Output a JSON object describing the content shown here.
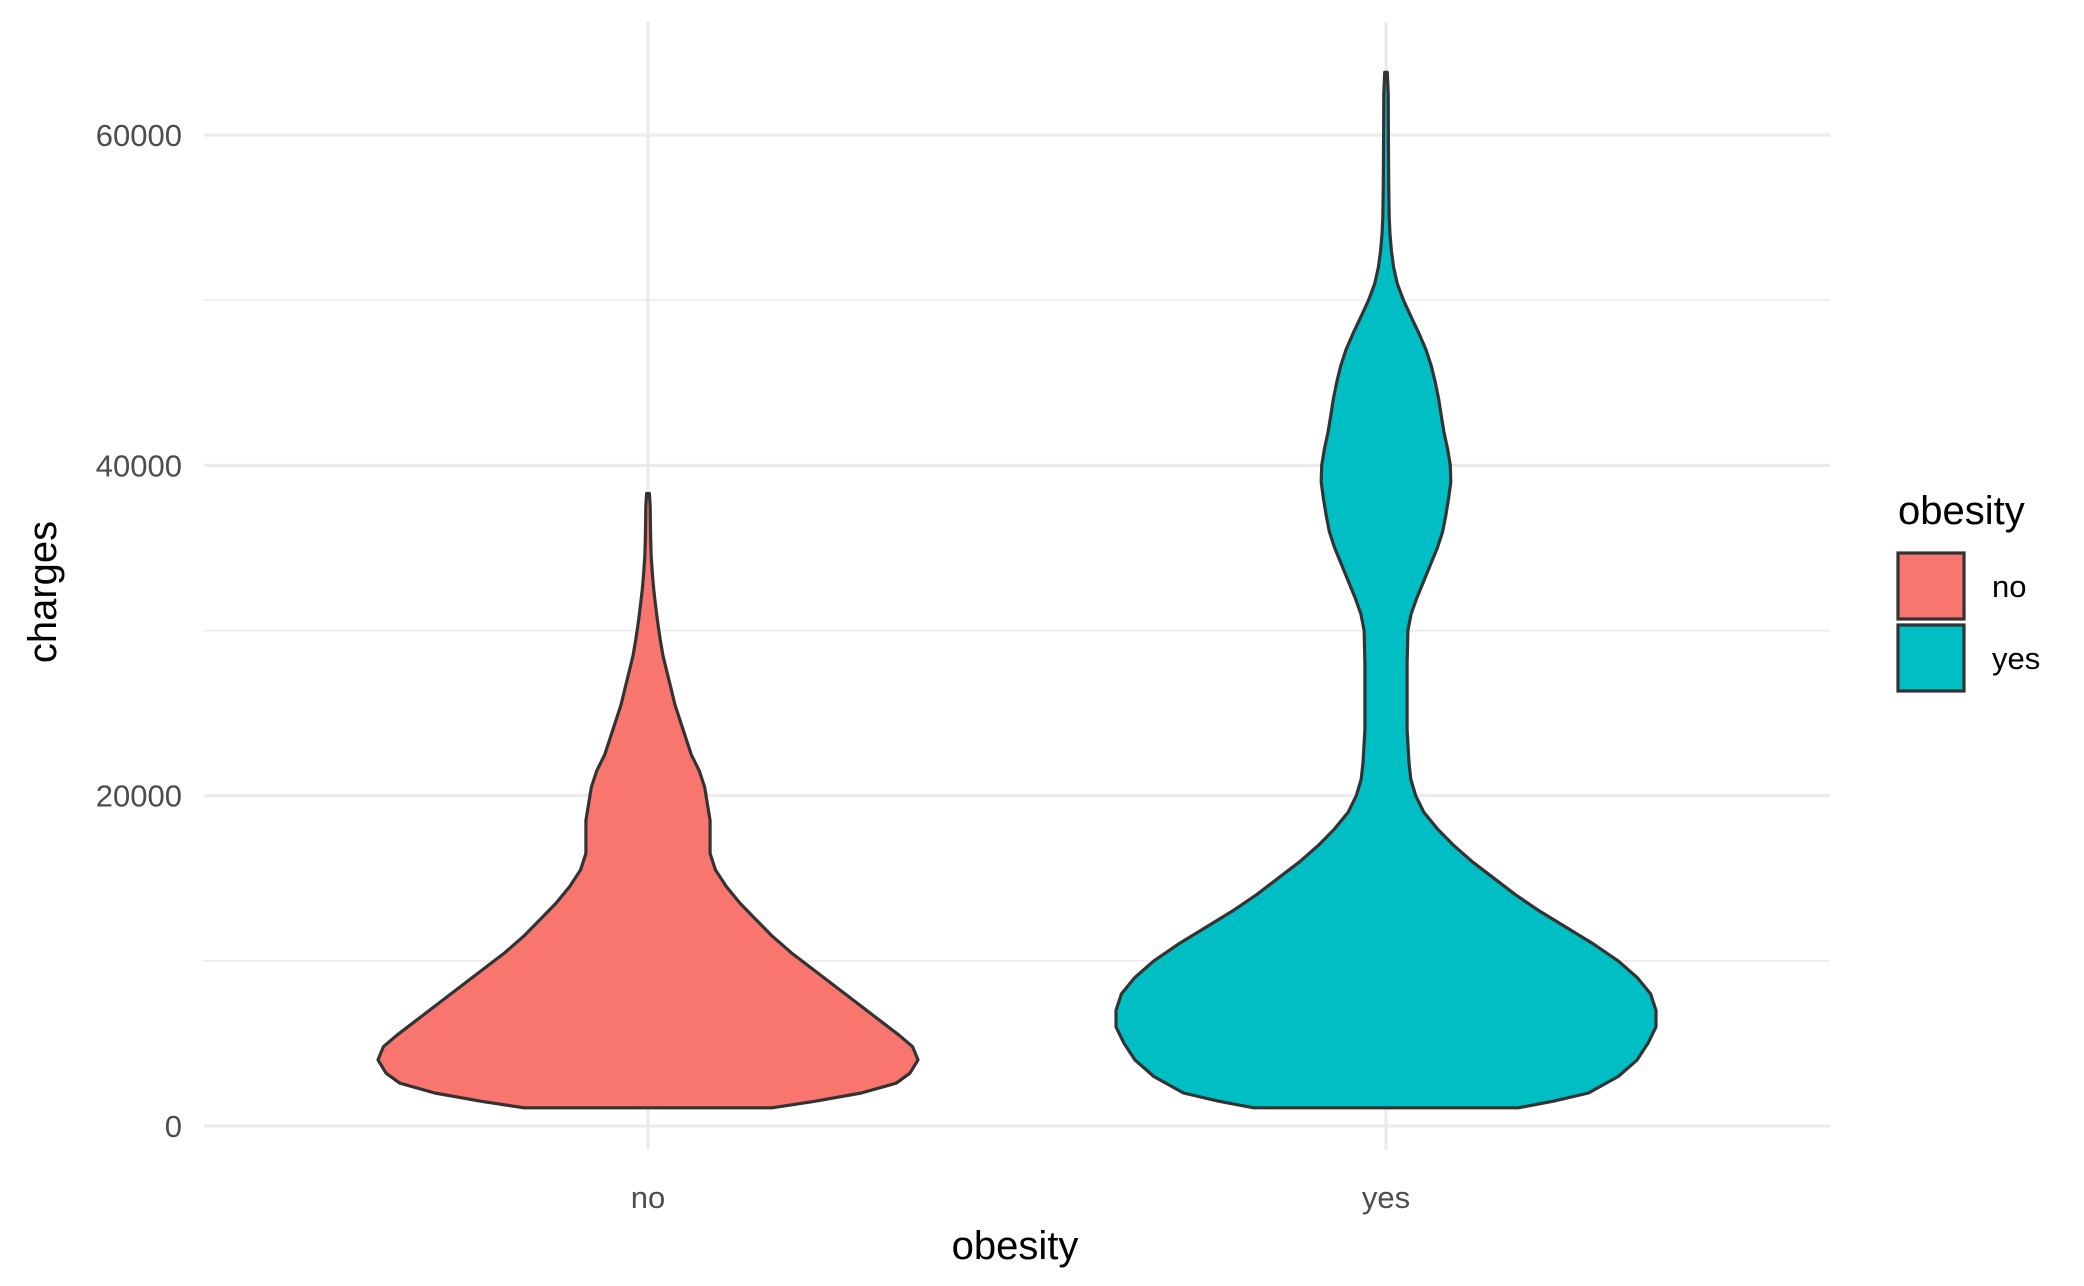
{
  "chart_data": {
    "type": "violin",
    "title": "",
    "xlabel": "obesity",
    "ylabel": "charges",
    "categories": [
      "no",
      "yes"
    ],
    "ylim": [
      -2000,
      66000
    ],
    "y_ticks": [
      0,
      20000,
      40000,
      60000
    ],
    "y_tick_labels": [
      "0",
      "20000",
      "40000",
      "60000"
    ],
    "grid": true,
    "legend": {
      "title": "obesity",
      "placement": "right",
      "entries": [
        {
          "label": "no",
          "color": "#F8766D"
        },
        {
          "label": "yes",
          "color": "#00BFC4"
        }
      ]
    },
    "series": [
      {
        "category": "no",
        "color": "#F8766D",
        "density_profile": [
          [
            1100,
            0.46
          ],
          [
            1500,
            0.62
          ],
          [
            2000,
            0.79
          ],
          [
            2600,
            0.92
          ],
          [
            3200,
            0.97
          ],
          [
            4000,
            1.0
          ],
          [
            4800,
            0.98
          ],
          [
            5500,
            0.93
          ],
          [
            6500,
            0.85
          ],
          [
            7500,
            0.77
          ],
          [
            8500,
            0.69
          ],
          [
            9500,
            0.61
          ],
          [
            10500,
            0.53
          ],
          [
            11500,
            0.46
          ],
          [
            12500,
            0.4
          ],
          [
            13500,
            0.34
          ],
          [
            14500,
            0.29
          ],
          [
            15500,
            0.25
          ],
          [
            16500,
            0.23
          ],
          [
            17500,
            0.23
          ],
          [
            18500,
            0.23
          ],
          [
            19500,
            0.22
          ],
          [
            20500,
            0.21
          ],
          [
            21500,
            0.19
          ],
          [
            22500,
            0.16
          ],
          [
            23500,
            0.14
          ],
          [
            24500,
            0.12
          ],
          [
            25500,
            0.1
          ],
          [
            26500,
            0.085
          ],
          [
            27500,
            0.07
          ],
          [
            28500,
            0.055
          ],
          [
            29500,
            0.045
          ],
          [
            30500,
            0.036
          ],
          [
            31500,
            0.028
          ],
          [
            32500,
            0.021
          ],
          [
            33500,
            0.016
          ],
          [
            34500,
            0.012
          ],
          [
            35500,
            0.01
          ],
          [
            36500,
            0.009
          ],
          [
            37500,
            0.008
          ],
          [
            38300,
            0.005
          ]
        ]
      },
      {
        "category": "yes",
        "color": "#00BFC4",
        "density_profile": [
          [
            1100,
            0.49
          ],
          [
            1500,
            0.62
          ],
          [
            2000,
            0.75
          ],
          [
            3000,
            0.86
          ],
          [
            4000,
            0.93
          ],
          [
            5000,
            0.97
          ],
          [
            6000,
            1.0
          ],
          [
            7000,
            1.0
          ],
          [
            8000,
            0.98
          ],
          [
            9000,
            0.93
          ],
          [
            10000,
            0.86
          ],
          [
            11000,
            0.77
          ],
          [
            12000,
            0.67
          ],
          [
            13000,
            0.57
          ],
          [
            14000,
            0.48
          ],
          [
            15000,
            0.4
          ],
          [
            16000,
            0.32
          ],
          [
            17000,
            0.25
          ],
          [
            18000,
            0.19
          ],
          [
            19000,
            0.14
          ],
          [
            20000,
            0.11
          ],
          [
            21000,
            0.092
          ],
          [
            22000,
            0.085
          ],
          [
            24000,
            0.078
          ],
          [
            26000,
            0.078
          ],
          [
            28000,
            0.078
          ],
          [
            30000,
            0.081
          ],
          [
            31000,
            0.093
          ],
          [
            32000,
            0.115
          ],
          [
            33000,
            0.14
          ],
          [
            34000,
            0.165
          ],
          [
            35000,
            0.19
          ],
          [
            36000,
            0.21
          ],
          [
            37000,
            0.222
          ],
          [
            38000,
            0.232
          ],
          [
            39000,
            0.24
          ],
          [
            40000,
            0.238
          ],
          [
            41000,
            0.228
          ],
          [
            42000,
            0.215
          ],
          [
            43000,
            0.205
          ],
          [
            44000,
            0.195
          ],
          [
            45000,
            0.183
          ],
          [
            46000,
            0.168
          ],
          [
            47000,
            0.148
          ],
          [
            48000,
            0.122
          ],
          [
            49000,
            0.093
          ],
          [
            50000,
            0.065
          ],
          [
            51000,
            0.042
          ],
          [
            52000,
            0.028
          ],
          [
            53000,
            0.02
          ],
          [
            54000,
            0.015
          ],
          [
            55000,
            0.012
          ],
          [
            57000,
            0.01
          ],
          [
            60000,
            0.009
          ],
          [
            62500,
            0.008
          ],
          [
            63800,
            0.005
          ]
        ]
      }
    ]
  }
}
